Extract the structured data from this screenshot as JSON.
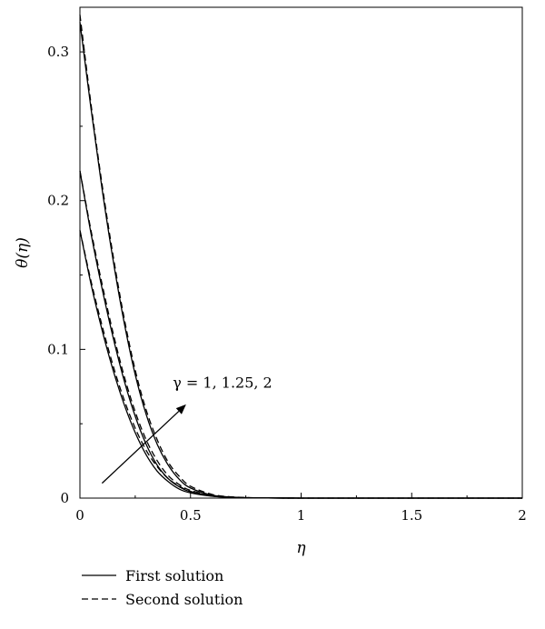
{
  "chart_data": {
    "type": "line",
    "title": "",
    "xlabel": "η",
    "ylabel": "θ(η)",
    "xlim": [
      0,
      2
    ],
    "ylim": [
      0,
      0.33
    ],
    "xticks": [
      0,
      0.5,
      1,
      1.5,
      2
    ],
    "xtick_labels": [
      "0",
      "0.5",
      "1",
      "1.5",
      "2"
    ],
    "yticks": [
      0,
      0.1,
      0.2,
      0.3
    ],
    "ytick_labels": [
      "0",
      "0.1",
      "0.2",
      "0.3"
    ],
    "grid": false,
    "legend_position": "bottom-left",
    "legend": [
      {
        "label": "First solution",
        "style": "solid"
      },
      {
        "label": "Second solution",
        "style": "dashed"
      }
    ],
    "annotation": {
      "text": "γ = 1, 1.25, 2",
      "arrow_from": [
        0.1,
        0.01
      ],
      "arrow_to": [
        0.48,
        0.063
      ]
    },
    "series": [
      {
        "solution": "first",
        "style": "solid",
        "gamma": 1,
        "x": [
          0,
          0.05,
          0.1,
          0.15,
          0.2,
          0.25,
          0.3,
          0.35,
          0.4,
          0.45,
          0.5,
          0.6,
          0.7,
          0.8,
          0.9,
          1.0,
          1.25,
          1.5,
          1.75,
          2.0
        ],
        "y": [
          0.18,
          0.144,
          0.113,
          0.086,
          0.063,
          0.044,
          0.029,
          0.018,
          0.011,
          0.006,
          0.0035,
          0.0012,
          0.0004,
          0.00012,
          4e-05,
          1e-05,
          0,
          0,
          0,
          0
        ]
      },
      {
        "solution": "second",
        "style": "dashed",
        "gamma": 1,
        "x": [
          0,
          0.05,
          0.1,
          0.15,
          0.2,
          0.25,
          0.3,
          0.35,
          0.4,
          0.45,
          0.5,
          0.6,
          0.7,
          0.8,
          0.9,
          1.0,
          1.25,
          1.5,
          1.75,
          2.0
        ],
        "y": [
          0.18,
          0.146,
          0.116,
          0.089,
          0.066,
          0.047,
          0.032,
          0.021,
          0.013,
          0.008,
          0.0045,
          0.0016,
          0.0006,
          0.0002,
          6e-05,
          2e-05,
          0,
          0,
          0,
          0
        ]
      },
      {
        "solution": "first",
        "style": "solid",
        "gamma": 1.25,
        "x": [
          0,
          0.05,
          0.1,
          0.15,
          0.2,
          0.25,
          0.3,
          0.35,
          0.4,
          0.45,
          0.5,
          0.6,
          0.7,
          0.8,
          0.9,
          1.0,
          1.25,
          1.5,
          1.75,
          2.0
        ],
        "y": [
          0.22,
          0.178,
          0.141,
          0.108,
          0.079,
          0.055,
          0.036,
          0.022,
          0.013,
          0.0075,
          0.0042,
          0.0013,
          0.0004,
          0.00012,
          4e-05,
          1e-05,
          0,
          0,
          0,
          0
        ]
      },
      {
        "solution": "second",
        "style": "dashed",
        "gamma": 1.25,
        "x": [
          0,
          0.05,
          0.1,
          0.15,
          0.2,
          0.25,
          0.3,
          0.35,
          0.4,
          0.45,
          0.5,
          0.6,
          0.7,
          0.8,
          0.9,
          1.0,
          1.25,
          1.5,
          1.75,
          2.0
        ],
        "y": [
          0.22,
          0.18,
          0.144,
          0.111,
          0.082,
          0.058,
          0.039,
          0.025,
          0.015,
          0.009,
          0.0052,
          0.0017,
          0.0006,
          0.0002,
          6e-05,
          2e-05,
          0,
          0,
          0,
          0
        ]
      },
      {
        "solution": "first",
        "style": "solid",
        "gamma": 2,
        "x": [
          0,
          0.05,
          0.1,
          0.15,
          0.2,
          0.25,
          0.3,
          0.35,
          0.4,
          0.45,
          0.5,
          0.6,
          0.7,
          0.8,
          0.9,
          1.0,
          1.25,
          1.5,
          1.75,
          2.0
        ],
        "y": [
          0.32,
          0.262,
          0.208,
          0.16,
          0.118,
          0.083,
          0.056,
          0.036,
          0.022,
          0.0125,
          0.0068,
          0.0019,
          0.0005,
          0.00014,
          4e-05,
          1e-05,
          0,
          0,
          0,
          0
        ]
      },
      {
        "solution": "second",
        "style": "dashed",
        "gamma": 2,
        "x": [
          0,
          0.05,
          0.1,
          0.15,
          0.2,
          0.25,
          0.3,
          0.35,
          0.4,
          0.45,
          0.5,
          0.6,
          0.7,
          0.8,
          0.9,
          1.0,
          1.25,
          1.5,
          1.75,
          2.0
        ],
        "y": [
          0.325,
          0.265,
          0.211,
          0.163,
          0.121,
          0.086,
          0.059,
          0.039,
          0.024,
          0.0145,
          0.008,
          0.0024,
          0.0007,
          0.0002,
          6e-05,
          2e-05,
          0,
          0,
          0,
          0
        ]
      }
    ]
  }
}
